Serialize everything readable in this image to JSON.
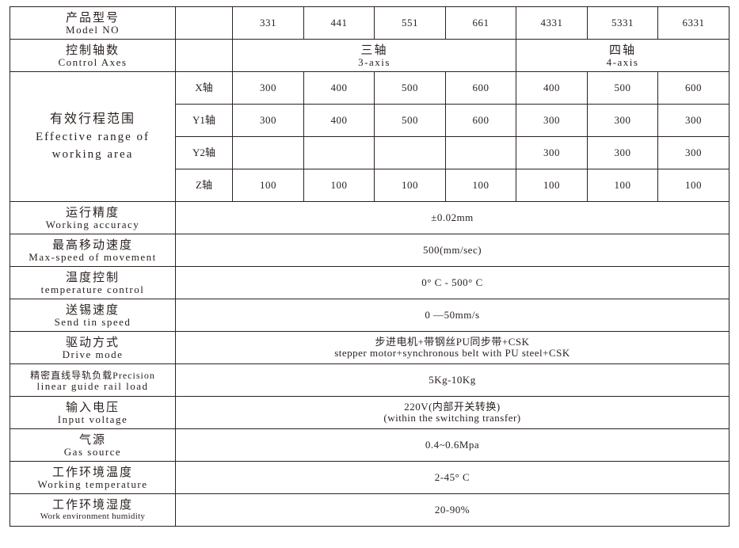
{
  "header": {
    "label_zh": "产品型号",
    "label_en": "Model NO",
    "models": [
      "331",
      "441",
      "551",
      "661",
      "4331",
      "5331",
      "6331"
    ]
  },
  "axes": {
    "label_zh": "控制轴数",
    "label_en": "Control Axes",
    "three_zh": "三轴",
    "three_en": "3-axis",
    "four_zh": "四轴",
    "four_en": "4-axis"
  },
  "range": {
    "label_zh": "有效行程范围",
    "label_en_1": "Effective range of",
    "label_en_2": "working area",
    "rows": [
      {
        "axis": "X轴",
        "values": [
          "300",
          "400",
          "500",
          "600",
          "400",
          "500",
          "600"
        ]
      },
      {
        "axis": "Y1轴",
        "values": [
          "300",
          "400",
          "500",
          "600",
          "300",
          "300",
          "300"
        ]
      },
      {
        "axis": "Y2轴",
        "values": [
          "",
          "",
          "",
          "",
          "300",
          "300",
          "300"
        ]
      },
      {
        "axis": "Z轴",
        "values": [
          "100",
          "100",
          "100",
          "100",
          "100",
          "100",
          "100"
        ]
      }
    ]
  },
  "specs": [
    {
      "label_zh": "运行精度",
      "label_en": "Working accuracy",
      "value": "±0.02mm"
    },
    {
      "label_zh": "最高移动速度",
      "label_en": "Max-speed of movement",
      "value": "500(mm/sec)"
    },
    {
      "label_zh": "温度控制",
      "label_en": "temperature control",
      "value": "0° C - 500° C"
    },
    {
      "label_zh": "送锡速度",
      "label_en": "Send tin speed",
      "value": "0 —50mm/s"
    },
    {
      "label_zh": "驱动方式",
      "label_en": "Drive mode",
      "value": "步进电机+带钢丝PU同步带+CSK",
      "value_2": "stepper motor+synchronous belt with PU steel+CSK"
    },
    {
      "label_zh": "精密直线导轨负载Precision",
      "label_en": "linear guide rail load",
      "value": "5Kg-10Kg"
    },
    {
      "label_zh": "输入电压",
      "label_en": "Input voltage",
      "value": "220V(内部开关转换)",
      "value_2": "(within the switching transfer)"
    },
    {
      "label_zh": "气源",
      "label_en": "Gas source",
      "value": "0.4~0.6Mpa"
    },
    {
      "label_zh": "工作环境温度",
      "label_en": "Working temperature",
      "value": "2-45° C"
    },
    {
      "label_zh": "工作环境湿度",
      "label_en": "Work environment humidity",
      "value": "20-90%"
    }
  ]
}
